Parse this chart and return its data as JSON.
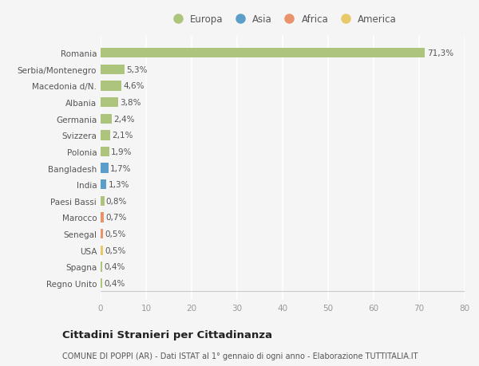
{
  "countries": [
    "Romania",
    "Serbia/Montenegro",
    "Macedonia d/N.",
    "Albania",
    "Germania",
    "Svizzera",
    "Polonia",
    "Bangladesh",
    "India",
    "Paesi Bassi",
    "Marocco",
    "Senegal",
    "USA",
    "Spagna",
    "Regno Unito"
  ],
  "values": [
    71.3,
    5.3,
    4.6,
    3.8,
    2.4,
    2.1,
    1.9,
    1.7,
    1.3,
    0.8,
    0.7,
    0.5,
    0.5,
    0.4,
    0.4
  ],
  "labels": [
    "71,3%",
    "5,3%",
    "4,6%",
    "3,8%",
    "2,4%",
    "2,1%",
    "1,9%",
    "1,7%",
    "1,3%",
    "0,8%",
    "0,7%",
    "0,5%",
    "0,5%",
    "0,4%",
    "0,4%"
  ],
  "continents": [
    "Europa",
    "Europa",
    "Europa",
    "Europa",
    "Europa",
    "Europa",
    "Europa",
    "Asia",
    "Asia",
    "Europa",
    "Africa",
    "Africa",
    "America",
    "Europa",
    "Europa"
  ],
  "continent_colors": {
    "Europa": "#adc47d",
    "Asia": "#5b9ec9",
    "Africa": "#e8936a",
    "America": "#e8c96a"
  },
  "legend_order": [
    "Europa",
    "Asia",
    "Africa",
    "America"
  ],
  "xlim": [
    0,
    80
  ],
  "xticks": [
    0,
    10,
    20,
    30,
    40,
    50,
    60,
    70,
    80
  ],
  "title": "Cittadini Stranieri per Cittadinanza",
  "subtitle": "COMUNE DI POPPI (AR) - Dati ISTAT al 1° gennaio di ogni anno - Elaborazione TUTTITALIA.IT",
  "background_color": "#f5f5f5",
  "bar_height": 0.6,
  "grid_color": "#ffffff",
  "label_fontsize": 7.5,
  "ytick_fontsize": 7.5,
  "xtick_fontsize": 7.5,
  "legend_fontsize": 8.5,
  "title_fontsize": 9.5,
  "subtitle_fontsize": 7.0
}
